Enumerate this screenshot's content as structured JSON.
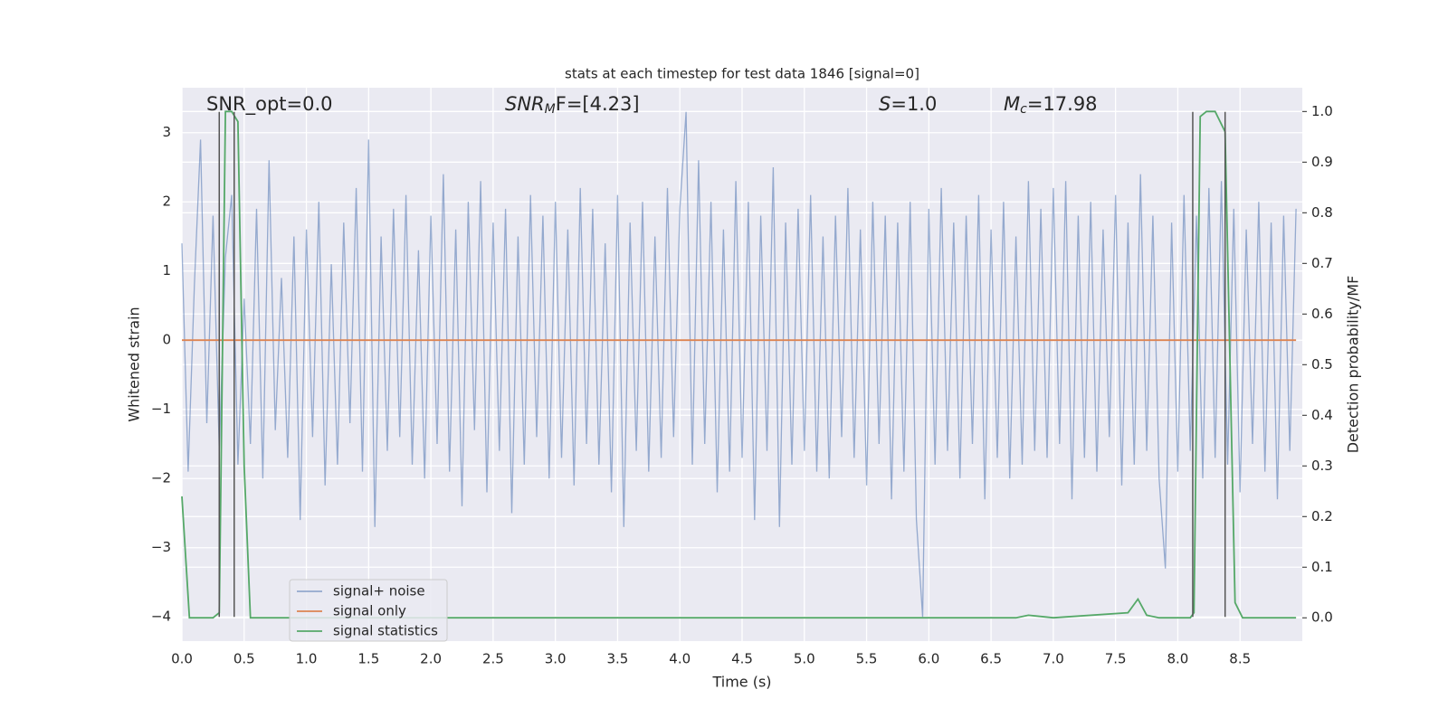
{
  "chart_data": {
    "type": "line",
    "title": "stats at each timestep for test data 1846 [signal=0]",
    "xlabel": "Time (s)",
    "ylabel": "Whitened strain",
    "y2label": "Detection probability/MF",
    "xlim": [
      0,
      9
    ],
    "ylim": [
      -4.35,
      3.65
    ],
    "y2lim": [
      -0.046,
      1.047
    ],
    "xticks": [
      {
        "value": 0,
        "label": "0.0"
      },
      0.5,
      {
        "value": 1,
        "label": "1.0"
      },
      1.5,
      {
        "value": 2,
        "label": "2.0"
      },
      2.5,
      {
        "value": 3,
        "label": "3.0"
      },
      3.5,
      {
        "value": 4,
        "label": "4.0"
      },
      4.5,
      {
        "value": 5,
        "label": "5.0"
      },
      5.5,
      {
        "value": 6,
        "label": "6.0"
      },
      6.5,
      {
        "value": 7,
        "label": "7.0"
      },
      7.5,
      {
        "value": 8,
        "label": "8.0"
      },
      8.5
    ],
    "yticks": [
      {
        "value": -4,
        "label": "−4"
      },
      {
        "value": -3,
        "label": "−3"
      },
      {
        "value": -2,
        "label": "−2"
      },
      {
        "value": -1,
        "label": "−1"
      },
      0,
      1,
      2,
      3
    ],
    "y2ticks": [
      {
        "value": 0,
        "label": "0.0"
      },
      0.1,
      0.2,
      0.3,
      0.4,
      0.5,
      0.6,
      0.7,
      0.8,
      0.9,
      {
        "value": 1,
        "label": "1.0"
      }
    ],
    "grid": true,
    "legend": "lower left",
    "series": [
      {
        "name": "signal+ noise",
        "color": "#4c72b0",
        "x": [
          0,
          0.05,
          0.1,
          0.15,
          0.2,
          0.25,
          0.3,
          0.35,
          0.4,
          0.45,
          0.5,
          0.55,
          0.6,
          0.65,
          0.7,
          0.75,
          0.8,
          0.85,
          0.9,
          0.95,
          1,
          1.05,
          1.1,
          1.15,
          1.2,
          1.25,
          1.3,
          1.35,
          1.4,
          1.45,
          1.5,
          1.55,
          1.6,
          1.65,
          1.7,
          1.75,
          1.8,
          1.85,
          1.9,
          1.95,
          2,
          2.05,
          2.1,
          2.15,
          2.2,
          2.25,
          2.3,
          2.35,
          2.4,
          2.45,
          2.5,
          2.55,
          2.6,
          2.65,
          2.7,
          2.75,
          2.8,
          2.85,
          2.9,
          2.95,
          3,
          3.05,
          3.1,
          3.15,
          3.2,
          3.25,
          3.3,
          3.35,
          3.4,
          3.45,
          3.5,
          3.55,
          3.6,
          3.65,
          3.7,
          3.75,
          3.8,
          3.85,
          3.9,
          3.95,
          4,
          4.05,
          4.1,
          4.15,
          4.2,
          4.25,
          4.3,
          4.35,
          4.4,
          4.45,
          4.5,
          4.55,
          4.6,
          4.65,
          4.7,
          4.75,
          4.8,
          4.85,
          4.9,
          4.95,
          5,
          5.05,
          5.1,
          5.15,
          5.2,
          5.25,
          5.3,
          5.35,
          5.4,
          5.45,
          5.5,
          5.55,
          5.6,
          5.65,
          5.7,
          5.75,
          5.8,
          5.85,
          5.9,
          5.95,
          6,
          6.05,
          6.1,
          6.15,
          6.2,
          6.25,
          6.3,
          6.35,
          6.4,
          6.45,
          6.5,
          6.55,
          6.6,
          6.65,
          6.7,
          6.75,
          6.8,
          6.85,
          6.9,
          6.95,
          7,
          7.05,
          7.1,
          7.15,
          7.2,
          7.25,
          7.3,
          7.35,
          7.4,
          7.45,
          7.5,
          7.55,
          7.6,
          7.65,
          7.7,
          7.75,
          7.8,
          7.85,
          7.9,
          7.95,
          8,
          8.05,
          8.1,
          8.15,
          8.2,
          8.25,
          8.3,
          8.35,
          8.4,
          8.45,
          8.5,
          8.55,
          8.6,
          8.65,
          8.7,
          8.75,
          8.8,
          8.85,
          8.9,
          8.95
        ],
        "values": [
          1.4,
          -1.9,
          0.8,
          2.9,
          -1.2,
          1.8,
          -1.6,
          1.2,
          2.1,
          -1.8,
          0.6,
          -1.5,
          1.9,
          -2.0,
          2.6,
          -1.3,
          0.9,
          -1.7,
          1.5,
          -2.6,
          1.6,
          -1.4,
          2.0,
          -2.1,
          1.1,
          -1.8,
          1.7,
          -1.2,
          2.2,
          -1.9,
          2.9,
          -2.7,
          1.5,
          -1.6,
          1.9,
          -1.4,
          2.1,
          -1.8,
          1.3,
          -2.0,
          1.8,
          -1.5,
          2.4,
          -1.9,
          1.6,
          -2.4,
          2.0,
          -1.3,
          2.3,
          -2.2,
          1.7,
          -1.6,
          1.9,
          -2.5,
          1.5,
          -1.8,
          2.1,
          -1.4,
          1.8,
          -2.0,
          2.0,
          -1.7,
          1.6,
          -2.1,
          2.2,
          -1.5,
          1.9,
          -1.8,
          1.4,
          -2.2,
          2.1,
          -2.7,
          1.7,
          -1.6,
          2.0,
          -1.9,
          1.5,
          -1.7,
          2.2,
          -1.4,
          1.9,
          3.3,
          -1.8,
          2.6,
          -1.5,
          2.0,
          -2.2,
          1.6,
          -1.9,
          2.3,
          -1.7,
          2.0,
          -2.6,
          1.8,
          -1.6,
          2.5,
          -2.7,
          1.7,
          -1.8,
          1.9,
          -1.6,
          2.1,
          -1.9,
          1.5,
          -2.0,
          1.8,
          -1.4,
          2.2,
          -1.7,
          1.6,
          -2.1,
          2.0,
          -1.5,
          1.8,
          -2.3,
          1.7,
          -1.9,
          2.0,
          -2.6,
          -4.0,
          1.9,
          -1.8,
          2.2,
          -1.6,
          1.7,
          -2.0,
          1.8,
          -1.5,
          2.1,
          -2.3,
          1.6,
          -1.7,
          2.0,
          -2.0,
          1.5,
          -1.8,
          2.3,
          -1.6,
          1.9,
          -1.7,
          2.2,
          -1.5,
          2.3,
          -2.3,
          1.8,
          -1.7,
          2.0,
          -1.9,
          1.6,
          -1.4,
          2.1,
          -2.1,
          1.7,
          -1.8,
          2.4,
          -1.6,
          1.8,
          -2.0,
          -3.3,
          1.7,
          -1.9,
          2.1,
          -1.6,
          1.8,
          -2.0,
          2.2,
          -1.7,
          2.3,
          -1.8,
          1.9,
          -2.2,
          1.6,
          -1.5,
          2.0,
          -1.9,
          1.7,
          -2.3,
          1.8,
          -1.6,
          1.9
        ]
      },
      {
        "name": "signal only",
        "color": "#dd8452",
        "x": [
          0,
          8.95
        ],
        "values": [
          0,
          0
        ]
      },
      {
        "name": "signal statistics",
        "color": "#55a868",
        "axis": "y2",
        "x": [
          0,
          0.06,
          0.15,
          0.25,
          0.3,
          0.35,
          0.4,
          0.45,
          0.5,
          0.55,
          1,
          2,
          3,
          4,
          5,
          6,
          6.7,
          6.8,
          7,
          7.6,
          7.68,
          7.75,
          7.85,
          8.1,
          8.13,
          8.18,
          8.23,
          8.3,
          8.38,
          8.46,
          8.52,
          8.95
        ],
        "values": [
          0.24,
          0,
          0,
          0,
          0.01,
          1,
          1,
          0.98,
          0.3,
          0,
          0,
          0,
          0,
          0,
          0,
          0,
          0,
          0.005,
          0,
          0.01,
          0.037,
          0.005,
          0,
          0,
          0.01,
          0.99,
          1,
          1,
          0.96,
          0.03,
          0,
          0
        ]
      }
    ],
    "vlines": {
      "x": [
        0.3,
        0.42,
        8.12,
        8.38
      ],
      "ymin": -4,
      "ymax": 3.3,
      "color": "#555555"
    },
    "annotations": [
      {
        "text": "SNR_opt=0.0"
      },
      {
        "italic": "SNR",
        "sub": "M",
        "text": "F=[4.23]"
      },
      {
        "italic": "S",
        "text": "=1.0"
      },
      {
        "italic": "M",
        "sub": "c",
        "text": "=17.98"
      }
    ]
  }
}
